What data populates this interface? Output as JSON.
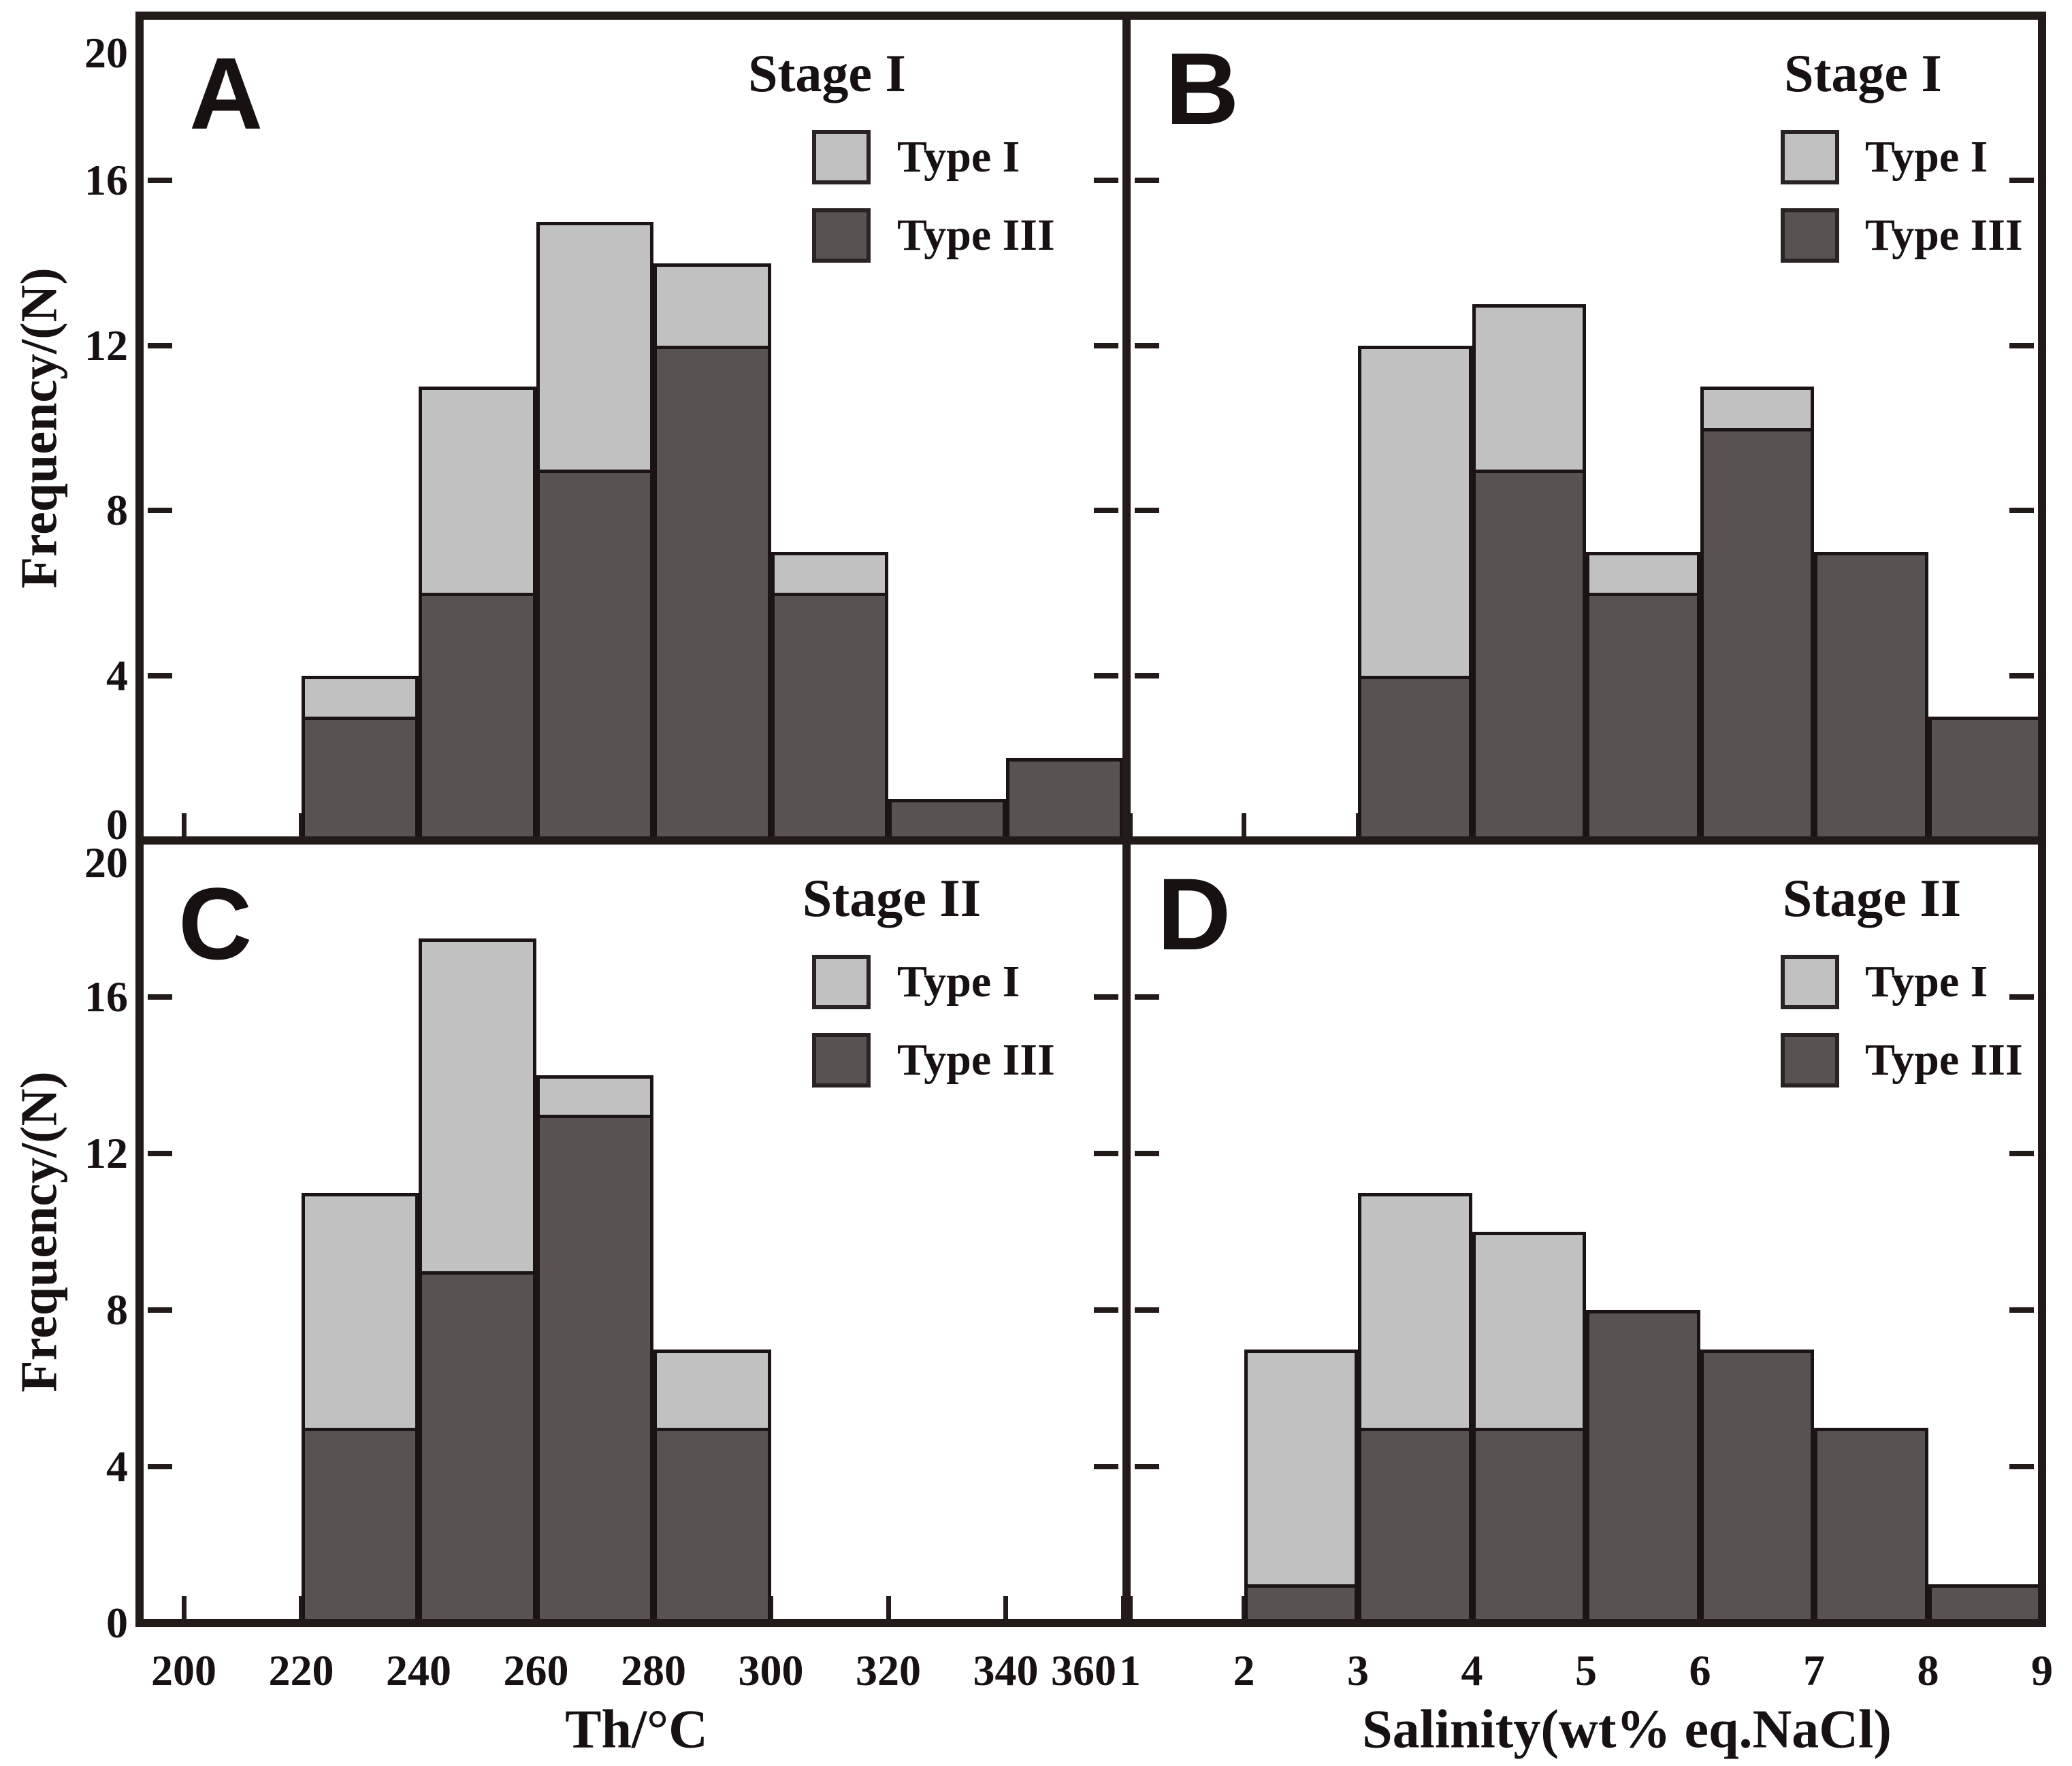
{
  "colors": {
    "type_i_fill": "#c2c1c2",
    "type_iii_fill": "#585253",
    "bar_stroke": "#1c1414",
    "frame": "#231a1a",
    "text": "#171111",
    "background": "#ffffff"
  },
  "y_axis": {
    "label": "Frequency/(N)",
    "ticks": [
      "0",
      "4",
      "8",
      "12",
      "16",
      "20"
    ],
    "tick_values": [
      0,
      4,
      8,
      12,
      16,
      20
    ],
    "max": 20
  },
  "x_axes": [
    {
      "id": "th",
      "label": "Th/°C",
      "ticks": [
        {
          "v": 200,
          "t": "200"
        },
        {
          "v": 220,
          "t": "220"
        },
        {
          "v": 240,
          "t": "240"
        },
        {
          "v": 260,
          "t": "260"
        },
        {
          "v": 280,
          "t": "280"
        },
        {
          "v": 300,
          "t": "300"
        },
        {
          "v": 320,
          "t": "320"
        },
        {
          "v": 340,
          "t": "340"
        },
        {
          "v": 360,
          "t": "360",
          "dx": -58
        }
      ]
    },
    {
      "id": "salinity",
      "label": "Salinity(wt% eq.NaCl)",
      "ticks": [
        {
          "v": 1,
          "t": "1"
        },
        {
          "v": 2,
          "t": "2"
        },
        {
          "v": 3,
          "t": "3"
        },
        {
          "v": 4,
          "t": "4"
        },
        {
          "v": 5,
          "t": "5"
        },
        {
          "v": 6,
          "t": "6"
        },
        {
          "v": 7,
          "t": "7"
        },
        {
          "v": 8,
          "t": "8"
        },
        {
          "v": 9,
          "t": "9"
        }
      ]
    }
  ],
  "legend": {
    "type_i": "Type I",
    "type_iii": "Type III"
  },
  "chart_data": [
    {
      "panel": "A",
      "title": "Stage I",
      "type": "bar",
      "subtype": "stacked-histogram",
      "x_axis": "th",
      "xlabel": "Th/°C",
      "ylabel": "Frequency/(N)",
      "ylim": [
        0,
        20
      ],
      "bin_start": 220,
      "bin_width": 20,
      "categories": [
        "220-240",
        "240-260",
        "260-280",
        "280-300",
        "300-320",
        "320-340",
        "340-360"
      ],
      "series": [
        {
          "name": "Type I",
          "values": [
            1,
            5,
            6,
            2,
            1,
            0,
            0
          ]
        },
        {
          "name": "Type III",
          "values": [
            3,
            6,
            9,
            12,
            6,
            1,
            2
          ]
        }
      ],
      "totals": [
        4,
        11,
        15,
        14,
        7,
        1,
        2
      ]
    },
    {
      "panel": "B",
      "title": "Stage I",
      "type": "bar",
      "subtype": "stacked-histogram",
      "x_axis": "salinity",
      "xlabel": "Salinity(wt% eq.NaCl)",
      "ylabel": "Frequency/(N)",
      "ylim": [
        0,
        20
      ],
      "bin_start": 3,
      "bin_width": 1,
      "categories": [
        "3-4",
        "4-5",
        "5-6",
        "6-7",
        "7-8",
        "8-9"
      ],
      "series": [
        {
          "name": "Type I",
          "values": [
            8,
            4,
            1,
            1,
            0,
            0
          ]
        },
        {
          "name": "Type III",
          "values": [
            4,
            9,
            6,
            10,
            7,
            3
          ]
        }
      ],
      "totals": [
        12,
        13,
        7,
        11,
        7,
        3
      ]
    },
    {
      "panel": "C",
      "title": "Stage II",
      "type": "bar",
      "subtype": "stacked-histogram",
      "x_axis": "th",
      "xlabel": "Th/°C",
      "ylabel": "Frequency/(N)",
      "ylim": [
        0,
        20
      ],
      "bin_start": 220,
      "bin_width": 20,
      "categories": [
        "220-240",
        "240-260",
        "260-280",
        "280-300"
      ],
      "series": [
        {
          "name": "Type I",
          "values": [
            6,
            8.5,
            1,
            2
          ]
        },
        {
          "name": "Type III",
          "values": [
            5,
            9,
            13,
            5
          ]
        }
      ],
      "totals": [
        11,
        17.5,
        14,
        7
      ]
    },
    {
      "panel": "D",
      "title": "Stage II",
      "type": "bar",
      "subtype": "stacked-histogram",
      "x_axis": "salinity",
      "xlabel": "Salinity(wt% eq.NaCl)",
      "ylabel": "Frequency/(N)",
      "ylim": [
        0,
        20
      ],
      "bin_start": 2,
      "bin_width": 1,
      "categories": [
        "2-3",
        "3-4",
        "4-5",
        "5-6",
        "6-7",
        "7-8",
        "8-9"
      ],
      "series": [
        {
          "name": "Type I",
          "values": [
            6,
            6,
            5,
            0,
            0,
            0,
            0
          ]
        },
        {
          "name": "Type III",
          "values": [
            1,
            5,
            5,
            8,
            7,
            5,
            1
          ]
        }
      ],
      "totals": [
        7,
        11,
        10,
        8,
        7,
        5,
        1
      ]
    }
  ]
}
